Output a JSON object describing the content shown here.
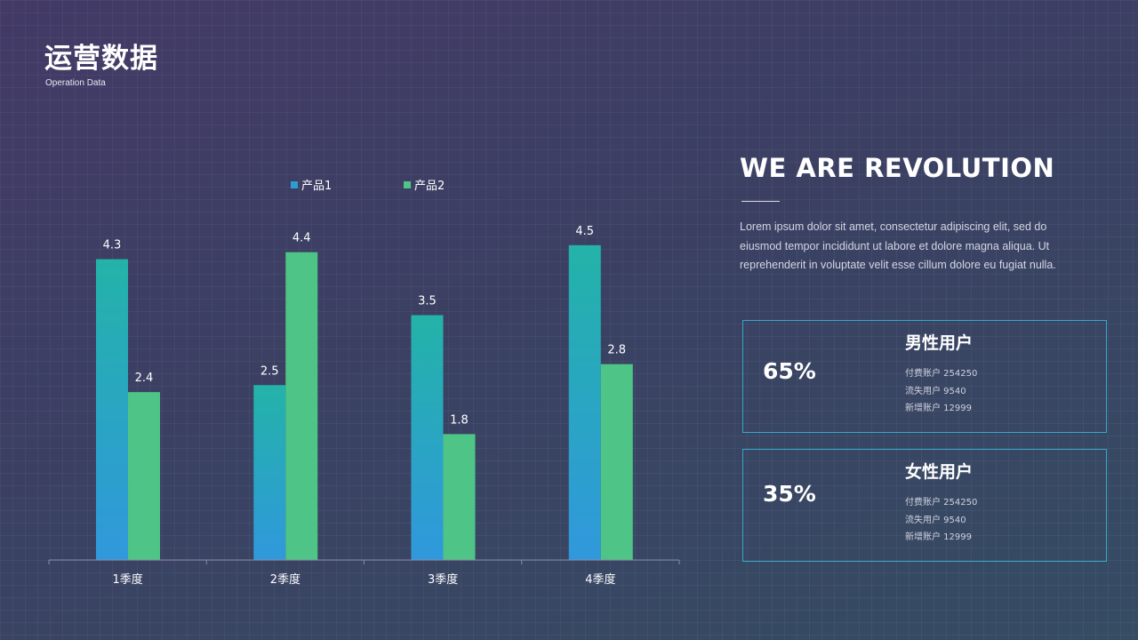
{
  "header": {
    "title": "运营数据",
    "subtitle": "Operation Data"
  },
  "chart_data": {
    "type": "bar",
    "categories": [
      "1季度",
      "2季度",
      "3季度",
      "4季度"
    ],
    "series": [
      {
        "name": "产品1",
        "values": [
          4.3,
          2.5,
          3.5,
          4.5
        ],
        "color": "#2ab0ac"
      },
      {
        "name": "产品2",
        "values": [
          2.4,
          4.4,
          1.8,
          2.8
        ],
        "color": "#4fc487"
      }
    ],
    "ylim": [
      0,
      4.5
    ],
    "grid": false,
    "legend_position": "top"
  },
  "right": {
    "heading": "WE ARE REVOLUTION",
    "body_lines": [
      "Lorem ipsum dolor sit amet, consectetur adipiscing elit, sed do",
      "eiusmod tempor incididunt ut  labore et dolore magna aliqua. Ut",
      "reprehenderit in voluptate velit  esse cillum dolore eu fugiat nulla."
    ]
  },
  "cards": {
    "male": {
      "percent": "65%",
      "title": "男性用户",
      "lines": [
        "付费账户 254250",
        "流失用户 9540",
        "新增账户 12999"
      ]
    },
    "female": {
      "percent": "35%",
      "title": "女性用户",
      "lines": [
        "付费账户 254250",
        "流失用户 9540",
        "新增账户 12999"
      ]
    }
  },
  "colors": {
    "accent_border": "#33a9c9",
    "bar1_bottom": "#3098dc"
  }
}
